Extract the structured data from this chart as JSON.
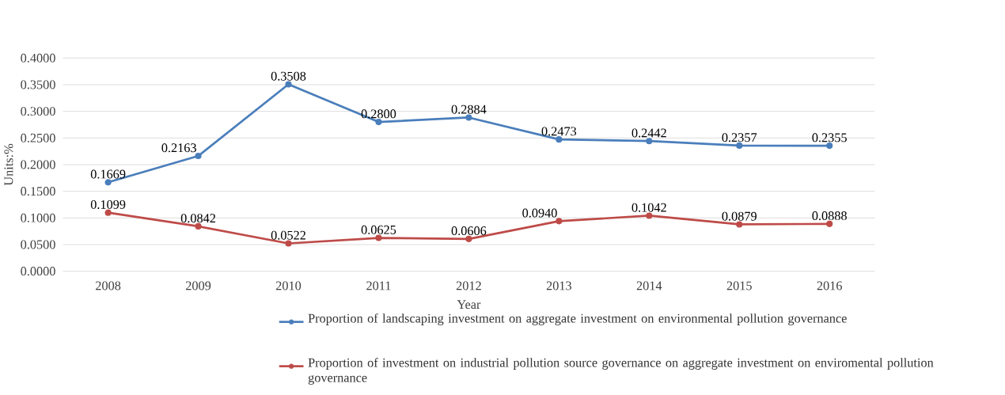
{
  "chart_data": {
    "type": "line",
    "xlabel": "Year",
    "ylabel": "Units:%",
    "categories": [
      "2008",
      "2009",
      "2010",
      "2011",
      "2012",
      "2013",
      "2014",
      "2015",
      "2016"
    ],
    "series": [
      {
        "name": "Proportion of landscaping investment on aggregate investment on environmental pollution governance",
        "color": "#4a7ebb",
        "values": [
          0.1669,
          0.2163,
          0.3508,
          0.28,
          0.2884,
          0.2473,
          0.2442,
          0.2357,
          0.2355
        ],
        "value_labels": [
          "0.1669",
          "0.2163",
          "0.3508",
          "0.2800",
          "0.2884",
          "0.2473",
          "0.2442",
          "0.2357",
          "0.2355"
        ]
      },
      {
        "name": "Proportion of investment on industrial pollution source governance on aggregate investment on enviromental pollution governance",
        "color": "#be4b48",
        "values": [
          0.1099,
          0.0842,
          0.0522,
          0.0625,
          0.0606,
          0.094,
          0.1042,
          0.0879,
          0.0888
        ],
        "value_labels": [
          "0.1099",
          "0.0842",
          "0.0522",
          "0.0625",
          "0.0606",
          "0.0940",
          "0.1042",
          "0.0879",
          "0.0888"
        ]
      }
    ],
    "ylim": [
      0,
      0.4
    ],
    "yticks": [
      {
        "value": 0,
        "label": "0.0000"
      },
      {
        "value": 0.05,
        "label": "0.0500"
      },
      {
        "value": 0.1,
        "label": "0.1000"
      },
      {
        "value": 0.15,
        "label": "0.1500"
      },
      {
        "value": 0.2,
        "label": "0.2000"
      },
      {
        "value": 0.25,
        "label": "0.2500"
      },
      {
        "value": 0.3,
        "label": "0.3000"
      },
      {
        "value": 0.35,
        "label": "0.3500"
      },
      {
        "value": 0.4,
        "label": "0.4000"
      }
    ],
    "grid": "y",
    "legend": "bottom",
    "marker": "circle",
    "line_style": "solid"
  }
}
